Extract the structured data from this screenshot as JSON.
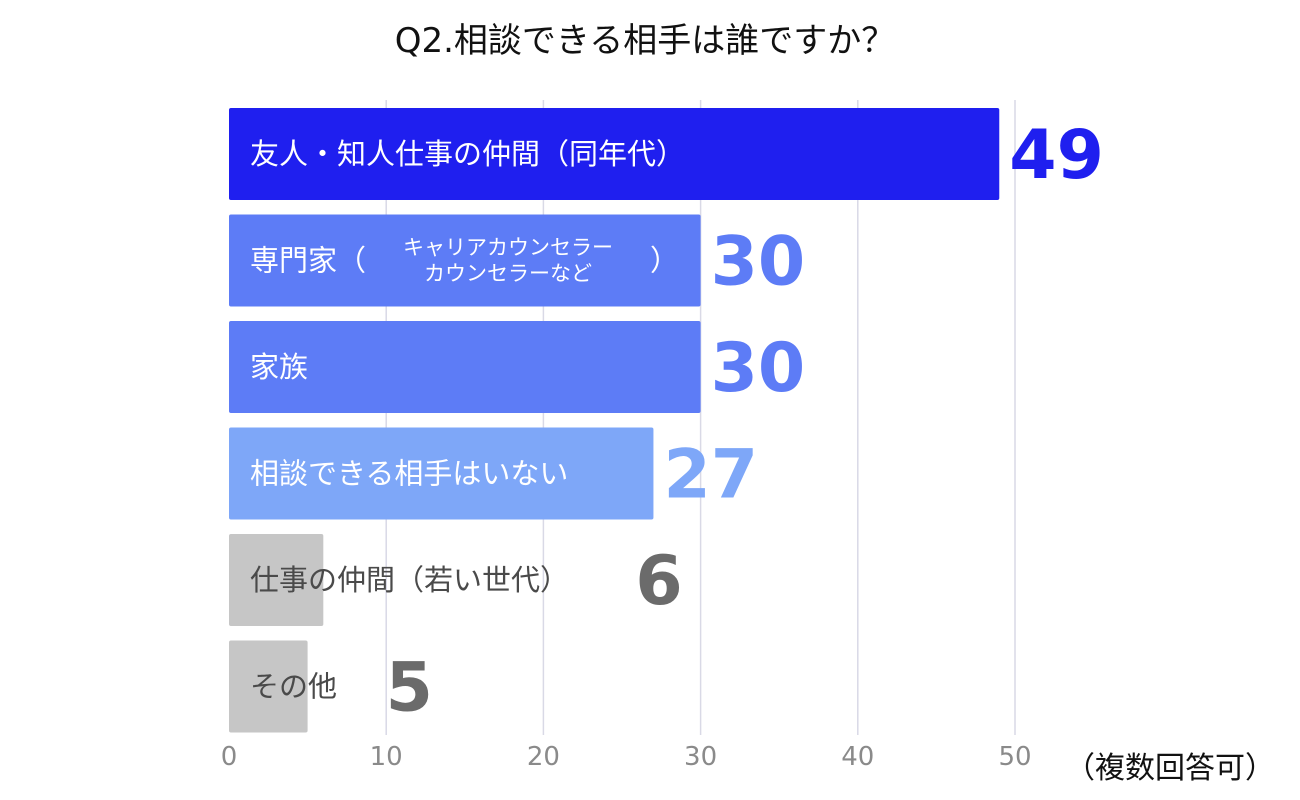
{
  "chart_data": {
    "type": "bar",
    "orientation": "horizontal",
    "title": "Q2.相談できる相手は誰ですか？",
    "note": "（複数回答可）",
    "categories": [
      {
        "label": "友人・知人仕事の仲間（同年代）",
        "prefix": "",
        "detail": [],
        "suffix": ""
      },
      {
        "label": "専門家（キャリアカウンセラー カウンセラーなど）",
        "prefix": "専門家（",
        "detail": [
          "キャリアカウンセラー",
          "カウンセラーなど"
        ],
        "suffix": "）"
      },
      {
        "label": "家族",
        "prefix": "",
        "detail": [],
        "suffix": ""
      },
      {
        "label": "相談できる相手はいない",
        "prefix": "",
        "detail": [],
        "suffix": ""
      },
      {
        "label": "仕事の仲間（若い世代）",
        "prefix": "",
        "detail": [],
        "suffix": ""
      },
      {
        "label": "その他",
        "prefix": "",
        "detail": [],
        "suffix": ""
      }
    ],
    "values": [
      49,
      30,
      30,
      27,
      6,
      5
    ],
    "colors": [
      "#1f1fef",
      "#5d7cf6",
      "#5d7cf6",
      "#7ea7f8",
      "#c6c6c6",
      "#c6c6c6"
    ],
    "label_colors": [
      "#ffffff",
      "#ffffff",
      "#ffffff",
      "#ffffff",
      "#4a4a4a",
      "#4a4a4a"
    ],
    "value_colors": [
      "#1f1fef",
      "#5d7cf6",
      "#5d7cf6",
      "#7ea7f8",
      "#6b6b6b",
      "#6b6b6b"
    ],
    "xlim": [
      0,
      50
    ],
    "xticks": [
      "0",
      "10",
      "20",
      "30",
      "40",
      "50"
    ],
    "grid": true,
    "legend": "none"
  }
}
